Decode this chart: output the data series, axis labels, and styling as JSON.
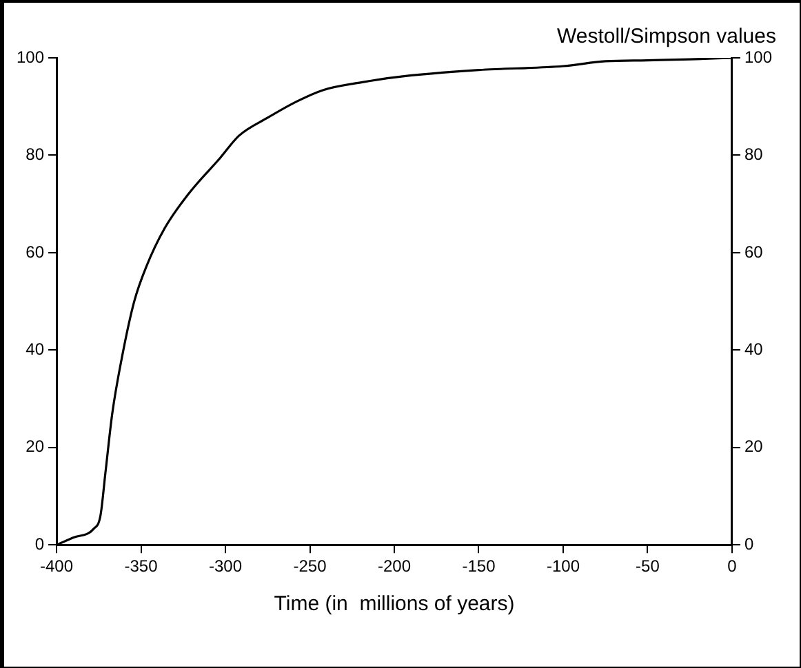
{
  "chart_data": {
    "type": "line",
    "title": "Westoll/Simpson values",
    "xlabel": "Time (in  millions of years)",
    "x": [
      -400,
      -390,
      -378,
      -374,
      -371,
      -367,
      -361,
      -354,
      -347,
      -336,
      -322,
      -303,
      -292,
      -275,
      -258,
      -242,
      -219,
      -200,
      -150,
      -100,
      -75,
      -50,
      -25,
      0
    ],
    "series": [
      {
        "color": "#000000",
        "values": [
          0,
          1.5,
          3.3,
          6,
          15,
          27,
          39,
          50,
          57,
          65,
          72,
          79.5,
          84,
          87.7,
          91,
          93.4,
          95,
          96,
          97.5,
          98.3,
          99.3,
          99.5,
          99.7,
          100
        ]
      }
    ],
    "xlim": [
      -400,
      0
    ],
    "xticks": [
      -400,
      -350,
      -300,
      -250,
      -200,
      -150,
      -100,
      -50,
      0
    ],
    "ylim": [
      0,
      100
    ],
    "yticks": [
      0,
      20,
      40,
      60,
      80,
      100
    ],
    "y2lim": [
      0,
      100
    ],
    "y2ticks": [
      0,
      20,
      40,
      60,
      80,
      100
    ],
    "grid": false,
    "legend": false,
    "marker": "none",
    "line_style": "solid"
  }
}
